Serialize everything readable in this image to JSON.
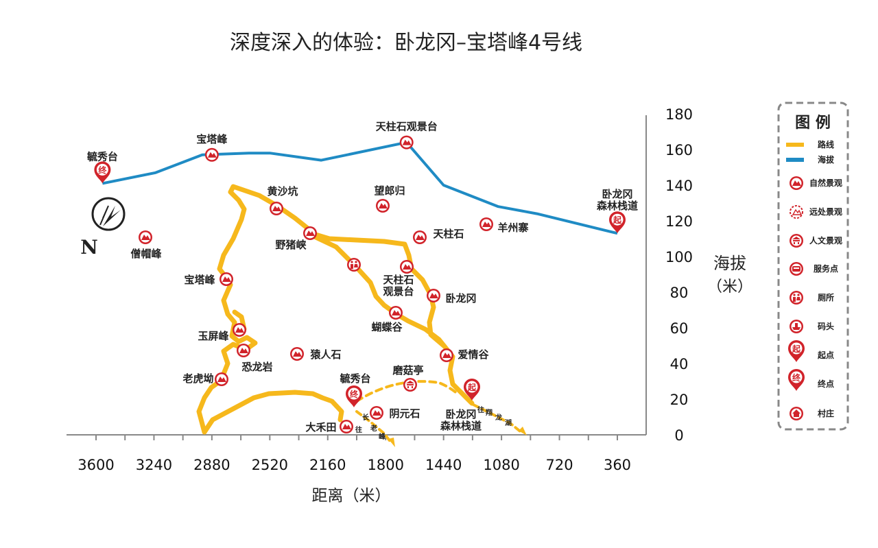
{
  "title": "深度深入的体验：卧龙冈–宝塔峰4号线",
  "axes": {
    "xlabel": "距离（米）",
    "ylabel_line1": "海拔",
    "ylabel_line2": "（米）",
    "x_ticks": [
      "3600",
      "3240",
      "2880",
      "2520",
      "2160",
      "1800",
      "1440",
      "1080",
      "720",
      "360"
    ],
    "y_ticks": [
      "180",
      "160",
      "140",
      "120",
      "100",
      "80",
      "60",
      "40",
      "20",
      "0"
    ]
  },
  "compass": {
    "north": "N"
  },
  "legend": {
    "title": "图 例",
    "items": [
      {
        "type": "route-line",
        "label": "路线",
        "color": "#f6b81c"
      },
      {
        "type": "elevation-line",
        "label": "海拔",
        "color": "#1f8bc4"
      },
      {
        "type": "natural-icon",
        "label": "自然景观"
      },
      {
        "type": "distant-icon",
        "label": "远处景观"
      },
      {
        "type": "cultural-icon",
        "label": "人文景观"
      },
      {
        "type": "service-icon",
        "label": "服务点"
      },
      {
        "type": "toilet-icon",
        "label": "厕所"
      },
      {
        "type": "pier-icon",
        "label": "码头"
      },
      {
        "type": "start-pin",
        "label": "起点",
        "glyph": "起"
      },
      {
        "type": "end-pin",
        "label": "终点",
        "glyph": "终"
      },
      {
        "type": "village-icon",
        "label": "村庄"
      }
    ]
  },
  "chart_data": {
    "type": "line",
    "title": "深度深入的体验：卧龙冈–宝塔峰4号线",
    "xlabel": "距离（米）",
    "ylabel": "海拔（米）",
    "xlim": [
      3800,
      200
    ],
    "ylim": [
      0,
      180
    ],
    "x_reversed": true,
    "series": [
      {
        "name": "海拔",
        "color": "#1f8bc4",
        "x": [
          3560,
          3230,
          2940,
          2650,
          2520,
          2200,
          1670,
          1440,
          1100,
          860,
          360
        ],
        "y": [
          141,
          147,
          157,
          158,
          158,
          154,
          164,
          140,
          128,
          124,
          113
        ]
      }
    ],
    "points": [
      {
        "label": "毓秀台",
        "x": 3560,
        "y": 141,
        "marker": "end"
      },
      {
        "label": "宝塔峰",
        "x": 2880,
        "y": 157,
        "marker": "natural"
      },
      {
        "label": "天柱石观景台",
        "x": 1670,
        "y": 164,
        "marker": "natural"
      },
      {
        "label": "卧龙冈\n森林栈道",
        "x": 360,
        "y": 113,
        "marker": "start"
      }
    ]
  },
  "map": {
    "route_color": "#f6b81c",
    "pin_color": "#d1232a",
    "places": [
      {
        "name": "黄沙坑",
        "icon": "natural"
      },
      {
        "name": "望郎归",
        "icon": "natural"
      },
      {
        "name": "野猪峡",
        "icon": "natural"
      },
      {
        "name": "天柱石",
        "icon": "natural"
      },
      {
        "name": "羊州寨",
        "icon": "natural"
      },
      {
        "name": "僧帽峰",
        "icon": "natural"
      },
      {
        "name": "宝塔峰",
        "icon": "natural"
      },
      {
        "name": "天柱石\n观景台",
        "icon": "natural"
      },
      {
        "name": "卧龙冈",
        "icon": "natural"
      },
      {
        "name": "蝴蝶谷",
        "icon": "natural"
      },
      {
        "name": "玉屏峰",
        "icon": "natural"
      },
      {
        "name": "猿人石",
        "icon": "natural"
      },
      {
        "name": "爱情谷",
        "icon": "natural"
      },
      {
        "name": "恐龙岩",
        "icon": "natural"
      },
      {
        "name": "老虎坳",
        "icon": "natural"
      },
      {
        "name": "毓秀台",
        "icon": "end"
      },
      {
        "name": "磨菇亭",
        "icon": "cultural"
      },
      {
        "name": "阴元石",
        "icon": "natural"
      },
      {
        "name": "大禾田",
        "icon": "natural"
      },
      {
        "name": "卧龙冈\n森林栈道",
        "icon": "start"
      },
      {
        "name": "toilet",
        "icon": "toilet"
      }
    ],
    "directions": [
      {
        "text": "往长老峰"
      },
      {
        "text": "往翔龙湖"
      }
    ]
  }
}
